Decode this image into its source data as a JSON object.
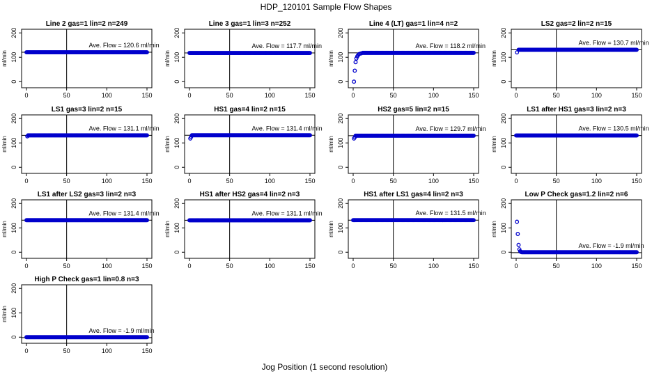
{
  "chart_data": {
    "type": "scatter",
    "title": "HDP_120101  Sample Flow Shapes",
    "xlabel": "Jog Position (1 second resolution)",
    "ylabel": "ml/min",
    "xlim": [
      0,
      150
    ],
    "ylim": [
      -25,
      215
    ],
    "xticks": [
      0,
      50,
      100,
      150
    ],
    "yticks": [
      0,
      100,
      200
    ],
    "vline_x": 50,
    "point_color": "#0000cc",
    "panels": [
      {
        "title": "Line 2 gas=1 lin=2 n=249",
        "annotation": "Ave. Flow =  120.6  ml/min",
        "mean": 120.6,
        "start": [],
        "x_range": [
          0,
          150
        ]
      },
      {
        "title": "Line 3 gas=1 lin=3 n=252",
        "annotation": "Ave. Flow =  117.7  ml/min",
        "mean": 117.7,
        "start": [],
        "x_range": [
          0,
          150
        ]
      },
      {
        "title": "Line 4 (LT) gas=1 lin=4 n=2",
        "annotation": "Ave. Flow =  118.2  ml/min",
        "mean": 118.2,
        "start": [
          [
            1,
            0
          ],
          [
            2,
            45
          ],
          [
            3,
            80
          ],
          [
            4,
            95
          ],
          [
            5,
            103
          ],
          [
            6,
            108
          ],
          [
            7,
            112
          ],
          [
            8,
            114
          ],
          [
            10,
            116
          ]
        ],
        "x_range": [
          12,
          150
        ]
      },
      {
        "title": "LS2 gas=2 lin=2 n=15",
        "annotation": "Ave. Flow =  130.7  ml/min",
        "mean": 130.7,
        "start": [
          [
            1,
            120
          ]
        ],
        "x_range": [
          3,
          150
        ]
      },
      {
        "title": "LS1 gas=3 lin=2 n=15",
        "annotation": "Ave. Flow =  131.1  ml/min",
        "mean": 131.1,
        "start": [
          [
            1,
            127
          ]
        ],
        "x_range": [
          2,
          150
        ]
      },
      {
        "title": "HS1 gas=4 lin=2 n=15",
        "annotation": "Ave. Flow =  131.4  ml/min",
        "mean": 131.4,
        "start": [
          [
            1,
            118
          ],
          [
            2,
            124
          ]
        ],
        "x_range": [
          3,
          150
        ]
      },
      {
        "title": "HS2 gas=5 lin=2 n=15",
        "annotation": "Ave. Flow =  129.7  ml/min",
        "mean": 129.7,
        "start": [
          [
            1,
            118
          ],
          [
            2,
            123
          ]
        ],
        "x_range": [
          3,
          150
        ]
      },
      {
        "title": "LS1 after HS1 gas=3 lin=2 n=3",
        "annotation": "Ave. Flow =  130.5  ml/min",
        "mean": 130.5,
        "start": [],
        "x_range": [
          0,
          150
        ]
      },
      {
        "title": "LS1 after LS2 gas=3 lin=2 n=3",
        "annotation": "Ave. Flow =  131.4  ml/min",
        "mean": 131.4,
        "start": [],
        "x_range": [
          0,
          150
        ]
      },
      {
        "title": "HS1 after HS2 gas=4 lin=2 n=3",
        "annotation": "Ave. Flow =  131.1  ml/min",
        "mean": 131.1,
        "start": [],
        "x_range": [
          0,
          150
        ]
      },
      {
        "title": "HS1 after LS1 gas=4 lin=2 n=3",
        "annotation": "Ave. Flow =  131.5  ml/min",
        "mean": 131.5,
        "start": [],
        "x_range": [
          0,
          150
        ]
      },
      {
        "title": "Low P Check gas=1.2 lin=2 n=6",
        "annotation": "Ave. Flow =  -1.9  ml/min",
        "mean": -1.9,
        "start": [
          [
            1,
            125
          ],
          [
            2,
            75
          ],
          [
            3,
            30
          ],
          [
            4,
            12
          ],
          [
            5,
            4
          ],
          [
            6,
            1
          ]
        ],
        "x_range": [
          7,
          150
        ],
        "base": 0
      },
      {
        "title": "High P Check gas=1 lin=0.8 n=3",
        "annotation": "Ave. Flow =  -1.9  ml/min",
        "mean": -1.9,
        "start": [],
        "x_range": [
          0,
          150
        ],
        "base": 0
      }
    ]
  }
}
